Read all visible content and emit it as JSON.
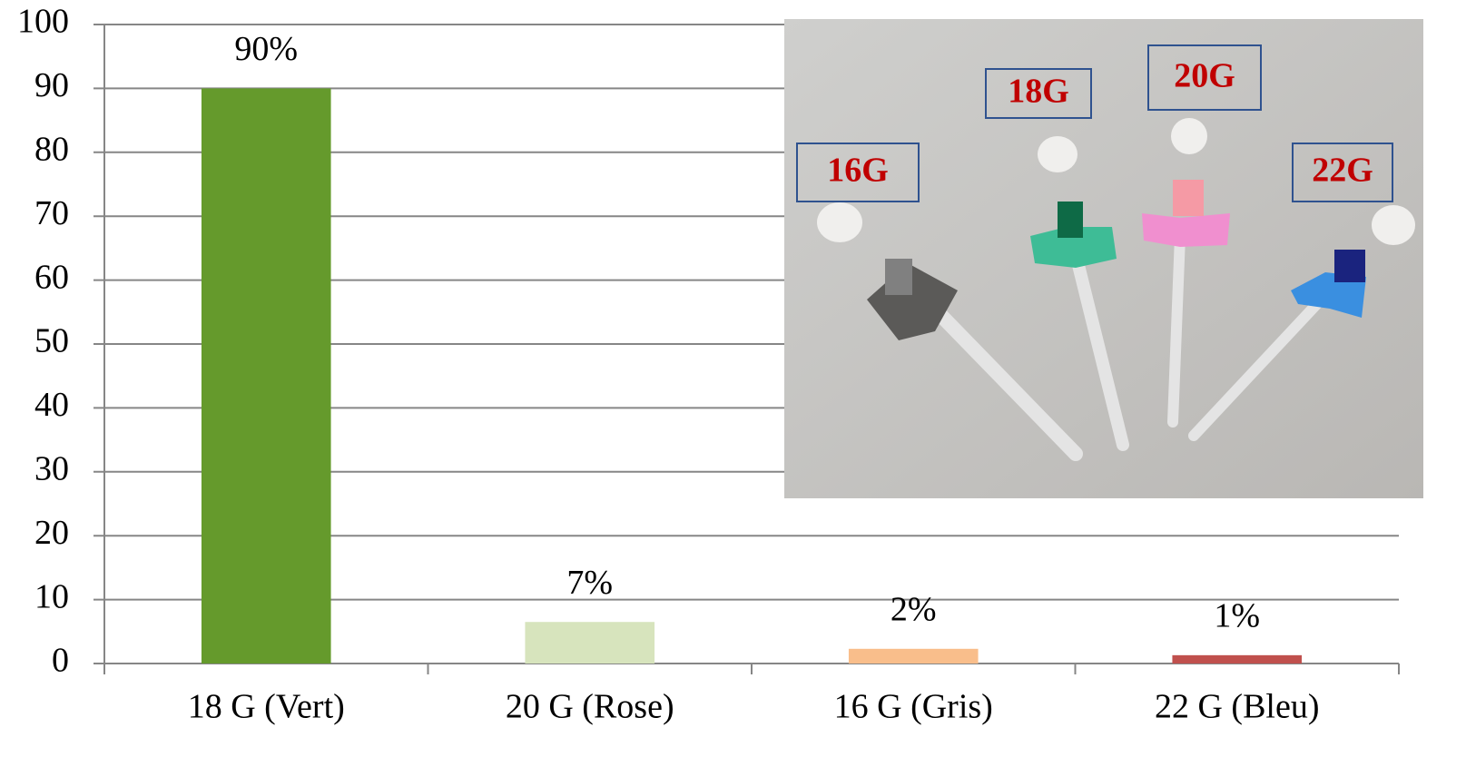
{
  "chart_data": {
    "type": "bar",
    "categories": [
      "18 G (Vert)",
      "20 G (Rose)",
      "16 G (Gris)",
      "22 G (Bleu)"
    ],
    "values": [
      90,
      6.5,
      2.3,
      1.3
    ],
    "value_labels": [
      "90%",
      "7%",
      "2%",
      "1%"
    ],
    "colors": [
      "#659a2c",
      "#d7e4bd",
      "#f9be8b",
      "#c0504d"
    ],
    "ylim": [
      0,
      100
    ],
    "yticks": [
      0,
      10,
      20,
      30,
      40,
      50,
      60,
      70,
      80,
      90,
      100
    ],
    "grid": true
  },
  "inset": {
    "labels": [
      "16G",
      "18G",
      "20G",
      "22G"
    ]
  }
}
